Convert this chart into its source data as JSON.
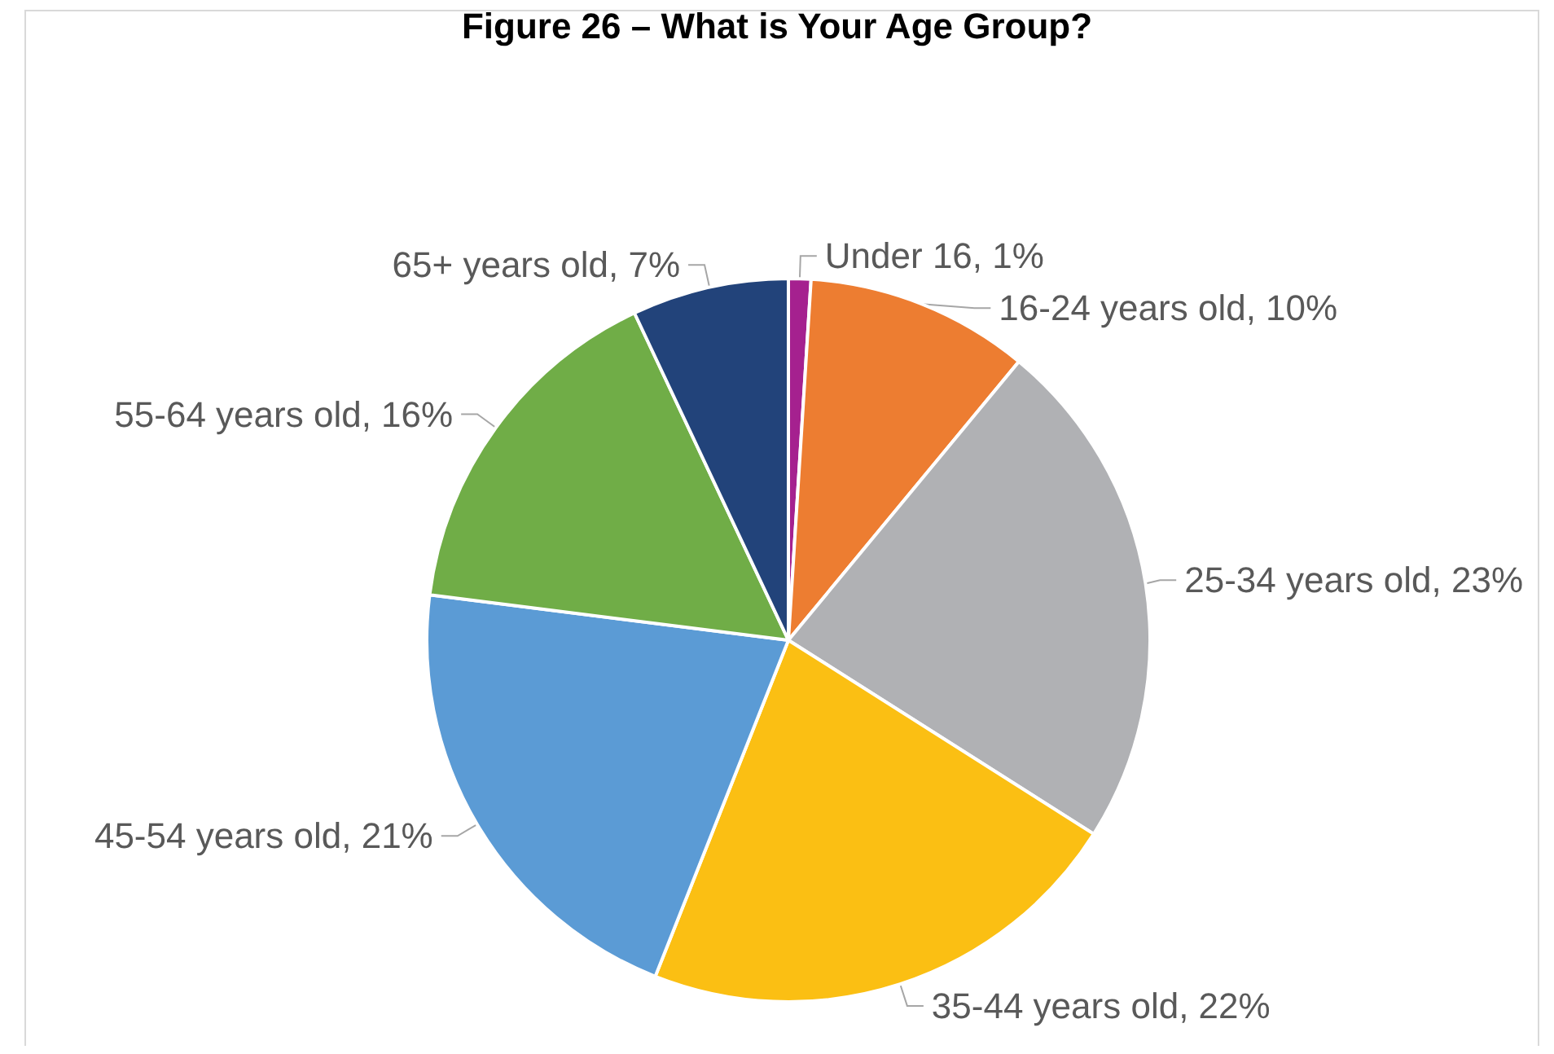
{
  "chart_data": {
    "type": "pie",
    "title": "Figure 26 – What is Your Age Group?",
    "categories": [
      "Under 16",
      "16-24 years old",
      "25-34 years old",
      "35-44 years old",
      "45-54 years old",
      "55-64 years old",
      "65+ years old"
    ],
    "values": [
      1,
      10,
      23,
      22,
      21,
      16,
      7
    ],
    "value_labels": [
      "1%",
      "10%",
      "23%",
      "22%",
      "21%",
      "16%",
      "7%"
    ],
    "colors": [
      "#a5218f",
      "#ed7d31",
      "#b0b1b4",
      "#fbbf13",
      "#5b9bd5",
      "#70ad47",
      "#22437a"
    ],
    "legend": false
  }
}
